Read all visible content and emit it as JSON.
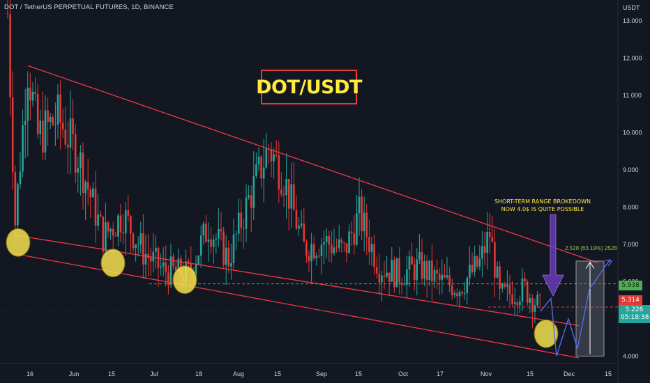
{
  "header": {
    "symbol_line": "DOT / TetherUS PERPETUAL FUTURES, 1D, BINANCE",
    "unit": "USDT"
  },
  "title": "DOT/USDT",
  "note": {
    "line1": "SHORT-TERM RANGE BROKEDOWN",
    "line2": "NOW 4.0$ IS QUITE POSSIBLE"
  },
  "measure_label": "2.528 (63.19%) 2528",
  "badges": {
    "green": "5.938",
    "red": "5.314",
    "current_price": "5.226",
    "countdown": "05:18:38"
  },
  "colors": {
    "up": "#26a69a",
    "down": "#e53935",
    "trend": "#f23645",
    "dashed_green": "#4caf50",
    "dashed_red": "#e53935",
    "projection": "#4f6bed",
    "arrow": "#673ab7",
    "circle_fill": "#f4e04d",
    "background": "#131722"
  },
  "chart_data": {
    "type": "candlestick",
    "x_ticks": [
      "16",
      "Jun",
      "15",
      "Jul",
      "18",
      "Aug",
      "15",
      "Sep",
      "15",
      "Oct",
      "17",
      "Nov",
      "15",
      "Dec",
      "15"
    ],
    "y_ticks": [
      "13.000",
      "12.000",
      "11.000",
      "10.000",
      "9.000",
      "8.000",
      "7.000",
      "6.000",
      "5.000",
      "4.000"
    ],
    "ylim": [
      3.8,
      13.3
    ],
    "anchors": [
      {
        "i": 0,
        "v": 13.2
      },
      {
        "i": 3,
        "v": 7.6
      },
      {
        "i": 8,
        "v": 11.8
      },
      {
        "i": 12,
        "v": 9.9
      },
      {
        "i": 20,
        "v": 10.4
      },
      {
        "i": 28,
        "v": 9.4
      },
      {
        "i": 38,
        "v": 7.2
      },
      {
        "i": 46,
        "v": 7.8
      },
      {
        "i": 54,
        "v": 6.8
      },
      {
        "i": 62,
        "v": 6.3
      },
      {
        "i": 72,
        "v": 6.2
      },
      {
        "i": 80,
        "v": 7.5
      },
      {
        "i": 88,
        "v": 6.6
      },
      {
        "i": 96,
        "v": 8.2
      },
      {
        "i": 104,
        "v": 9.6
      },
      {
        "i": 110,
        "v": 8.8
      },
      {
        "i": 118,
        "v": 6.9
      },
      {
        "i": 126,
        "v": 7.1
      },
      {
        "i": 134,
        "v": 6.8
      },
      {
        "i": 140,
        "v": 7.8
      },
      {
        "i": 148,
        "v": 6.4
      },
      {
        "i": 156,
        "v": 6.2
      },
      {
        "i": 164,
        "v": 6.4
      },
      {
        "i": 172,
        "v": 6.0
      },
      {
        "i": 180,
        "v": 5.85
      },
      {
        "i": 188,
        "v": 6.5
      },
      {
        "i": 192,
        "v": 7.3
      },
      {
        "i": 196,
        "v": 5.6
      },
      {
        "i": 206,
        "v": 5.8
      },
      {
        "i": 212,
        "v": 5.3
      }
    ],
    "n_candles": 213,
    "levels": {
      "dashed_green": 5.938,
      "dashed_red": 5.314,
      "current": 5.226
    },
    "projection_path": [
      5.2,
      5.55,
      4.0,
      5.0,
      4.2,
      5.8,
      6.6
    ]
  }
}
